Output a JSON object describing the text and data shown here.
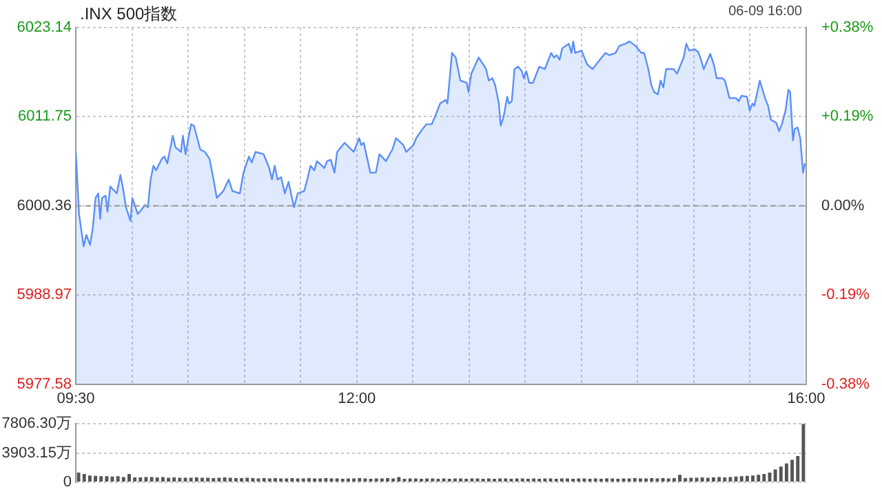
{
  "chart_data": [
    {
      "type": "area",
      "title": ".INX 500指数",
      "annotations": [
        "06-09 16:00"
      ],
      "x": [
        9.5,
        9.529,
        9.57,
        9.594,
        9.627,
        9.651,
        9.676,
        9.7,
        9.717,
        9.733,
        9.766,
        9.782,
        9.807,
        9.864,
        9.897,
        9.921,
        9.946,
        9.987,
        10.003,
        10.052,
        10.085,
        10.117,
        10.142,
        10.166,
        10.191,
        10.215,
        10.265,
        10.289,
        10.314,
        10.363,
        10.387,
        10.436,
        10.453,
        10.477,
        10.502,
        10.526,
        10.551,
        10.608,
        10.649,
        10.69,
        10.722,
        10.755,
        10.812,
        10.861,
        10.894,
        10.96,
        10.992,
        11.041,
        11.066,
        11.099,
        11.172,
        11.221,
        11.246,
        11.27,
        11.295,
        11.327,
        11.36,
        11.393,
        11.442,
        11.475,
        11.532,
        11.565,
        11.589,
        11.622,
        11.646,
        11.712,
        11.736,
        11.769,
        11.802,
        11.826,
        11.892,
        11.973,
        12.022,
        12.039,
        12.063,
        12.121,
        12.17,
        12.202,
        12.26,
        12.317,
        12.35,
        12.415,
        12.44,
        12.505,
        12.529,
        12.587,
        12.619,
        12.668,
        12.718,
        12.742,
        12.791,
        12.807,
        12.848,
        12.881,
        12.922,
        12.979,
        12.995,
        13.02,
        13.085,
        13.151,
        13.175,
        13.208,
        13.232,
        13.265,
        13.281,
        13.306,
        13.339,
        13.355,
        13.38,
        13.404,
        13.437,
        13.47,
        13.486,
        13.51,
        13.535,
        13.568,
        13.625,
        13.674,
        13.731,
        13.756,
        13.78,
        13.805,
        13.829,
        13.887,
        13.911,
        13.927,
        13.944,
        14.001,
        14.05,
        14.099,
        14.148,
        14.214,
        14.246,
        14.304,
        14.336,
        14.393,
        14.426,
        14.483,
        14.532,
        14.557,
        14.59,
        14.622,
        14.647,
        14.68,
        14.704,
        14.729,
        14.753,
        14.819,
        14.851,
        14.909,
        14.933,
        14.958,
        15.007,
        15.039,
        15.064,
        15.088,
        15.146,
        15.178,
        15.203,
        15.252,
        15.277,
        15.317,
        15.375,
        15.399,
        15.424,
        15.473,
        15.497,
        15.522,
        15.538,
        15.587,
        15.636,
        15.661,
        15.685,
        15.734,
        15.759,
        15.783,
        15.816,
        15.841,
        15.857,
        15.882,
        15.898,
        15.923,
        15.947,
        15.972,
        15.988
      ],
      "series": [
        {
          "color": "#5b8ff9",
          "values": [
            6007.25,
            5999.3,
            5995.18,
            5996.65,
            5995.36,
            5997.54,
            6001.36,
            6001.95,
            5998.71,
            6001.36,
            6001.66,
            5999.6,
            6002.83,
            6001.95,
            6004.31,
            6002.54,
            6000.19,
            5998.42,
            6001.36,
            5999.3,
            5999.89,
            6000.48,
            6000.19,
            6003.72,
            6005.48,
            6004.9,
            6006.37,
            6006.66,
            6005.78,
            6009.31,
            6007.84,
            6007.25,
            6009.31,
            6006.95,
            6009.02,
            6010.78,
            6010.6,
            6007.54,
            6007.25,
            6006.36,
            6004.01,
            6001.36,
            6002.24,
            6003.72,
            6002.24,
            6001.95,
            6004.6,
            6006.66,
            6005.89,
            6007.25,
            6006.95,
            6005.19,
            6003.72,
            6005.48,
            6003.72,
            6004.01,
            6001.95,
            6003.42,
            6000.18,
            6001.95,
            6002.24,
            6004.01,
            6005.48,
            6004.89,
            6006.07,
            6005.19,
            6006.07,
            6006.25,
            6004.6,
            6007.25,
            6008.42,
            6007.25,
            6009.01,
            6008.13,
            6008.42,
            6004.6,
            6004.6,
            6006.95,
            6006.07,
            6007.54,
            6009.01,
            6008.13,
            6007.25,
            6008.13,
            6009.01,
            6010.19,
            6010.78,
            6010.78,
            6012.54,
            6013.43,
            6013.9,
            6013.43,
            6019.9,
            6019.31,
            6016.37,
            6016.08,
            6014.9,
            6017.25,
            6019.31,
            6017.84,
            6016.37,
            6016.67,
            6015.78,
            6013.43,
            6010.6,
            6011.66,
            6014.31,
            6013.43,
            6013.72,
            6017.84,
            6018.14,
            6017.55,
            6016.67,
            6017.55,
            6016.08,
            6016.08,
            6018.14,
            6017.84,
            6019.9,
            6019.31,
            6019.61,
            6019.02,
            6020.49,
            6021.08,
            6019.9,
            6021.37,
            6019.9,
            6020.2,
            6018.43,
            6017.84,
            6018.73,
            6019.9,
            6019.61,
            6019.9,
            6020.79,
            6021.08,
            6021.37,
            6020.79,
            6019.9,
            6019.9,
            6018.14,
            6015.78,
            6014.9,
            6014.6,
            6016.37,
            6015.49,
            6017.84,
            6017.84,
            6017.25,
            6019.31,
            6021.08,
            6020.2,
            6020.37,
            6020.02,
            6019.02,
            6017.84,
            6019.78,
            6018.43,
            6016.67,
            6016.67,
            6016.37,
            6014.13,
            6014.13,
            6013.72,
            6014.43,
            6014.31,
            6012.54,
            6013.43,
            6013.13,
            6016.37,
            6014.02,
            6013.13,
            6011.37,
            6010.96,
            6009.9,
            6010.78,
            6012.54,
            6015.19,
            6014.9,
            6008.72,
            6010.19,
            6010.37,
            6009.01,
            6004.6,
            6005.78
          ]
        }
      ],
      "xlim": [
        9.5,
        16
      ],
      "xticks": [
        {
          "value": 9.5,
          "label": "09:30"
        },
        {
          "value": 10,
          "label": null
        },
        {
          "value": 10.5,
          "label": null
        },
        {
          "value": 11,
          "label": null
        },
        {
          "value": 11.5,
          "label": null
        },
        {
          "value": 12,
          "label": "12:00"
        },
        {
          "value": 12.5,
          "label": null
        },
        {
          "value": 13,
          "label": null
        },
        {
          "value": 13.5,
          "label": null
        },
        {
          "value": 14,
          "label": null
        },
        {
          "value": 14.5,
          "label": null
        },
        {
          "value": 15,
          "label": null
        },
        {
          "value": 15.5,
          "label": null
        },
        {
          "value": 16,
          "label": "16:00"
        }
      ],
      "ylim": [
        5977.58,
        6023.14
      ],
      "yticks": [
        5977.58,
        5988.97,
        6000.36,
        6011.75,
        6023.14
      ],
      "y2lim": [
        -0.38,
        0.38
      ],
      "y2ticks": [
        {
          "value": -0.38,
          "label": "-0.38%"
        },
        {
          "value": -0.19,
          "label": "-0.19%"
        },
        {
          "value": 0,
          "label": "0.00%"
        },
        {
          "value": 0.19,
          "label": "+0.19%"
        },
        {
          "value": 0.38,
          "label": "+0.38%"
        }
      ],
      "ref_lines": [
        {
          "axis": "y",
          "value": 6000.36,
          "color": "#999999",
          "line_style": "dashed"
        }
      ],
      "grid": true
    },
    {
      "type": "bar",
      "tick_labels": "y",
      "grid": "y",
      "categories": [
        null,
        null,
        null,
        null,
        null,
        null,
        null,
        null,
        null,
        null,
        null,
        null,
        null,
        null,
        null,
        null,
        null,
        null,
        null,
        null,
        null,
        null,
        null,
        null,
        null,
        null,
        null,
        null,
        null,
        null,
        null,
        null,
        null,
        null,
        null,
        null,
        null,
        null,
        null,
        null,
        null,
        null,
        null,
        null,
        null,
        null,
        null,
        null,
        null,
        null,
        null,
        null,
        null,
        null,
        null,
        null,
        null,
        null,
        null,
        null,
        null,
        null,
        null,
        null,
        null,
        null,
        null,
        null,
        null,
        null,
        null,
        null,
        null,
        null,
        null,
        null,
        null,
        null,
        null,
        null,
        null,
        null,
        null,
        null,
        null,
        null,
        null,
        null,
        null,
        null,
        null,
        null,
        null,
        null,
        null,
        null,
        null,
        null,
        null,
        null,
        null,
        null,
        null,
        null,
        null,
        null,
        null,
        null,
        null,
        null,
        null,
        null,
        null,
        null,
        null,
        null,
        null,
        null,
        null,
        null,
        null,
        null,
        null,
        null,
        null,
        null,
        null,
        null,
        null,
        null
      ],
      "series": [
        {
          "color": "#555555",
          "values": [
            1300,
            1100,
            900,
            850,
            800,
            800,
            750,
            800,
            700,
            1100,
            650,
            650,
            700,
            700,
            650,
            700,
            600,
            650,
            600,
            600,
            600,
            650,
            600,
            600,
            550,
            600,
            650,
            600,
            550,
            550,
            600,
            550,
            500,
            550,
            500,
            550,
            500,
            500,
            550,
            500,
            500,
            550,
            500,
            500,
            550,
            500,
            500,
            450,
            500,
            500,
            550,
            500,
            450,
            500,
            500,
            550,
            500,
            700,
            450,
            500,
            500,
            450,
            500,
            500,
            450,
            500,
            450,
            500,
            500,
            450,
            500,
            500,
            450,
            500,
            450,
            500,
            500,
            450,
            500,
            500,
            450,
            500,
            450,
            500,
            500,
            450,
            500,
            500,
            450,
            500,
            500,
            450,
            500,
            450,
            500,
            500,
            450,
            500,
            500,
            550,
            500,
            500,
            550,
            500,
            550,
            500,
            550,
            1000,
            550,
            600,
            600,
            650,
            600,
            650,
            700,
            650,
            700,
            750,
            800,
            850,
            900,
            1000,
            1100,
            1300,
            1700,
            2100,
            2500,
            3000,
            3500,
            7806.3
          ]
        }
      ],
      "ylim": [
        0,
        7806.3
      ],
      "yticks": [
        0,
        {
          "value": 3903.15,
          "label": "3903.15万"
        },
        {
          "value": 7806.3,
          "label": "7806.30万"
        }
      ]
    }
  ]
}
